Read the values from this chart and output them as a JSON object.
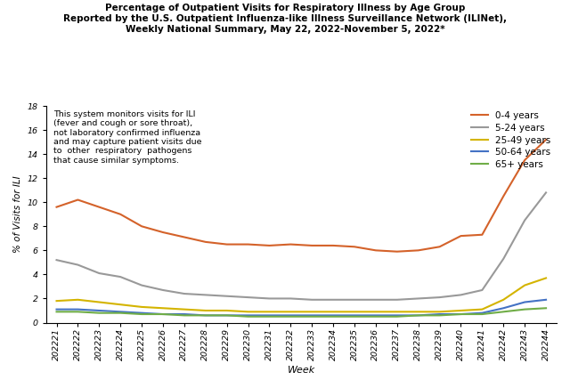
{
  "title_line1": "Percentage of Outpatient Visits for Respiratory Illness by Age Group",
  "title_line2": "Reported by the U.S. Outpatient Influenza-like Illness Surveillance Network (ILINet),",
  "title_line3": "Weekly National Summary, May 22, 2022-November 5, 2022*",
  "xlabel": "Week",
  "ylabel": "% of Visits for ILI",
  "annotation": "This system monitors visits for ILI\n(fever and cough or sore throat),\nnot laboratory confirmed influenza\nand may capture patient visits due\nto  other  respiratory  pathogens\nthat cause similar symptoms.",
  "weeks": [
    "202221",
    "202222",
    "202223",
    "202224",
    "202225",
    "202226",
    "202227",
    "202228",
    "202229",
    "202230",
    "202231",
    "202232",
    "202233",
    "202234",
    "202235",
    "202236",
    "202237",
    "202238",
    "202239",
    "202240",
    "202241",
    "202242",
    "202243",
    "202244"
  ],
  "series": {
    "0-4 years": {
      "color": "#d4622a",
      "values": [
        9.6,
        10.2,
        9.6,
        9.0,
        8.0,
        7.5,
        7.1,
        6.7,
        6.5,
        6.5,
        6.4,
        6.5,
        6.4,
        6.4,
        6.3,
        6.0,
        5.9,
        6.0,
        6.3,
        7.2,
        7.3,
        10.5,
        13.5,
        15.2
      ]
    },
    "5-24 years": {
      "color": "#999999",
      "values": [
        5.2,
        4.8,
        4.1,
        3.8,
        3.1,
        2.7,
        2.4,
        2.3,
        2.2,
        2.1,
        2.0,
        2.0,
        1.9,
        1.9,
        1.9,
        1.9,
        1.9,
        2.0,
        2.1,
        2.3,
        2.7,
        5.3,
        8.5,
        10.8
      ]
    },
    "25-49 years": {
      "color": "#d4b400",
      "values": [
        1.8,
        1.9,
        1.7,
        1.5,
        1.3,
        1.2,
        1.1,
        1.0,
        1.0,
        0.9,
        0.9,
        0.9,
        0.9,
        0.9,
        0.9,
        0.9,
        0.9,
        0.9,
        0.9,
        1.0,
        1.1,
        1.9,
        3.1,
        3.7
      ]
    },
    "50-64 years": {
      "color": "#4472c4",
      "values": [
        1.1,
        1.1,
        1.0,
        0.9,
        0.8,
        0.7,
        0.7,
        0.6,
        0.6,
        0.6,
        0.6,
        0.6,
        0.6,
        0.6,
        0.6,
        0.6,
        0.6,
        0.6,
        0.7,
        0.7,
        0.8,
        1.2,
        1.7,
        1.9
      ]
    },
    "65+ years": {
      "color": "#70ad47",
      "values": [
        0.9,
        0.9,
        0.8,
        0.8,
        0.7,
        0.7,
        0.6,
        0.6,
        0.6,
        0.5,
        0.5,
        0.5,
        0.5,
        0.5,
        0.5,
        0.5,
        0.5,
        0.6,
        0.6,
        0.7,
        0.7,
        0.9,
        1.1,
        1.2
      ]
    }
  },
  "ylim": [
    0,
    18
  ],
  "yticks": [
    0,
    2,
    4,
    6,
    8,
    10,
    12,
    14,
    16,
    18
  ],
  "background_color": "#ffffff",
  "title_fontsize": 7.5,
  "tick_fontsize": 6.8,
  "ylabel_fontsize": 7.5,
  "xlabel_fontsize": 8,
  "annotation_fontsize": 6.8,
  "legend_fontsize": 7.5
}
